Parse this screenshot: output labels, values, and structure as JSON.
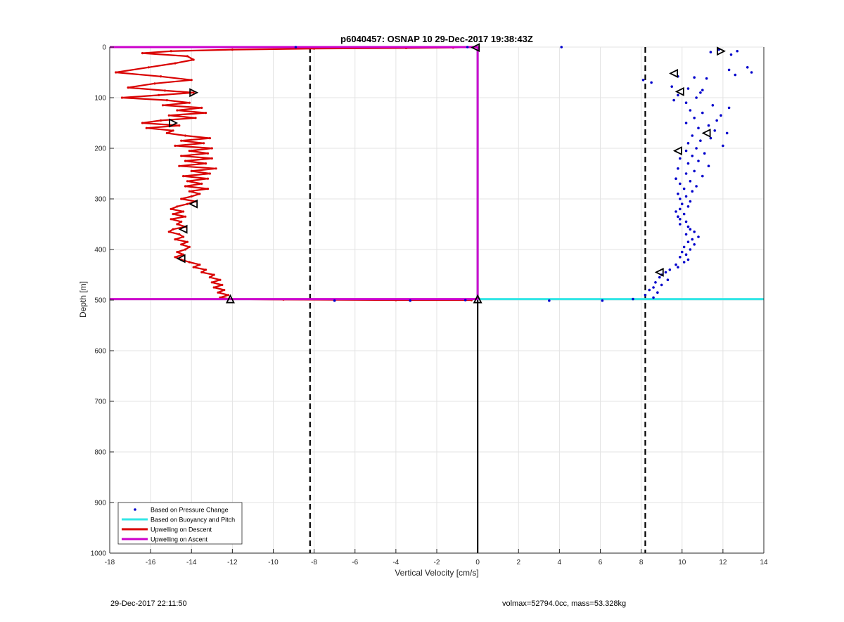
{
  "chart_data": {
    "type": "scatter",
    "title": "p6040457: OSNAP 10 29-Dec-2017 19:38:43Z",
    "xlabel": "Vertical Velocity [cm/s]",
    "ylabel": "Depth [m]",
    "xlim": [
      -18,
      14
    ],
    "ylim": [
      0,
      1000
    ],
    "y_reversed": true,
    "xticks": [
      -18,
      -16,
      -14,
      -12,
      -10,
      -8,
      -6,
      -4,
      -2,
      0,
      2,
      4,
      6,
      8,
      10,
      12,
      14
    ],
    "yticks": [
      0,
      100,
      200,
      300,
      400,
      500,
      600,
      700,
      800,
      900,
      1000
    ],
    "grid": true,
    "legend_position": "bottom-left",
    "colors": {
      "pressure": "#0000cc",
      "buoyancy": "#33e6e6",
      "descent": "#d90000",
      "ascent": "#cc00cc",
      "reference": "#000000"
    },
    "series": [
      {
        "name": "Based on Pressure Change",
        "style": "dots",
        "points": [
          [
            4.1,
            0
          ],
          [
            11.8,
            5
          ],
          [
            12.7,
            8
          ],
          [
            11.4,
            10
          ],
          [
            12.4,
            15
          ],
          [
            13.2,
            40
          ],
          [
            12.3,
            45
          ],
          [
            13.4,
            50
          ],
          [
            12.6,
            55
          ],
          [
            9.8,
            58
          ],
          [
            10.6,
            60
          ],
          [
            11.2,
            62
          ],
          [
            8.1,
            65
          ],
          [
            8.5,
            70
          ],
          [
            9.5,
            78
          ],
          [
            10.3,
            82
          ],
          [
            11.0,
            85
          ],
          [
            10.9,
            90
          ],
          [
            9.8,
            95
          ],
          [
            10.7,
            100
          ],
          [
            9.6,
            105
          ],
          [
            10.2,
            110
          ],
          [
            11.5,
            115
          ],
          [
            12.3,
            120
          ],
          [
            10.4,
            125
          ],
          [
            11.0,
            130
          ],
          [
            11.9,
            135
          ],
          [
            10.6,
            140
          ],
          [
            11.7,
            145
          ],
          [
            10.2,
            150
          ],
          [
            11.3,
            155
          ],
          [
            10.8,
            160
          ],
          [
            11.6,
            165
          ],
          [
            12.2,
            170
          ],
          [
            10.5,
            175
          ],
          [
            11.4,
            180
          ],
          [
            10.9,
            185
          ],
          [
            10.3,
            190
          ],
          [
            12.0,
            195
          ],
          [
            10.7,
            200
          ],
          [
            10.2,
            205
          ],
          [
            11.1,
            210
          ],
          [
            10.5,
            215
          ],
          [
            9.9,
            220
          ],
          [
            10.8,
            225
          ],
          [
            10.3,
            230
          ],
          [
            11.3,
            235
          ],
          [
            9.8,
            240
          ],
          [
            10.6,
            245
          ],
          [
            10.2,
            250
          ],
          [
            11.0,
            255
          ],
          [
            9.7,
            260
          ],
          [
            10.4,
            265
          ],
          [
            9.9,
            270
          ],
          [
            10.7,
            275
          ],
          [
            10.1,
            280
          ],
          [
            10.5,
            285
          ],
          [
            9.8,
            290
          ],
          [
            10.2,
            295
          ],
          [
            9.9,
            300
          ],
          [
            10.4,
            305
          ],
          [
            10.0,
            310
          ],
          [
            10.3,
            315
          ],
          [
            9.9,
            320
          ],
          [
            9.7,
            325
          ],
          [
            10.1,
            330
          ],
          [
            9.8,
            335
          ],
          [
            9.9,
            340
          ],
          [
            10.2,
            345
          ],
          [
            9.9,
            350
          ],
          [
            10.3,
            355
          ],
          [
            10.4,
            360
          ],
          [
            10.6,
            365
          ],
          [
            10.2,
            370
          ],
          [
            10.8,
            375
          ],
          [
            10.5,
            380
          ],
          [
            10.3,
            385
          ],
          [
            10.6,
            390
          ],
          [
            10.1,
            395
          ],
          [
            10.4,
            400
          ],
          [
            10.0,
            405
          ],
          [
            10.2,
            410
          ],
          [
            9.9,
            415
          ],
          [
            10.3,
            420
          ],
          [
            10.1,
            425
          ],
          [
            9.7,
            430
          ],
          [
            9.8,
            435
          ],
          [
            9.4,
            440
          ],
          [
            9.2,
            445
          ],
          [
            9.0,
            450
          ],
          [
            8.9,
            455
          ],
          [
            9.3,
            460
          ],
          [
            8.7,
            465
          ],
          [
            9.0,
            470
          ],
          [
            8.6,
            475
          ],
          [
            8.4,
            480
          ],
          [
            8.8,
            485
          ],
          [
            8.2,
            490
          ],
          [
            8.6,
            495
          ],
          [
            -0.5,
            0
          ],
          [
            -8.9,
            0
          ],
          [
            -0.6,
            500
          ],
          [
            -3.3,
            501
          ],
          [
            -7.0,
            501
          ],
          [
            3.5,
            501
          ],
          [
            6.1,
            501
          ],
          [
            7.6,
            498
          ]
        ]
      },
      {
        "name": "Based on Buoyancy and Pitch",
        "style": "line",
        "points": [
          [
            0,
            0
          ],
          [
            0,
            100
          ],
          [
            0,
            200
          ],
          [
            0,
            300
          ],
          [
            0,
            400
          ],
          [
            0,
            498
          ],
          [
            2,
            498
          ],
          [
            6,
            498
          ],
          [
            10,
            498
          ],
          [
            14,
            498
          ]
        ]
      },
      {
        "name": "Upwelling on Descent",
        "style": "line",
        "points": [
          [
            -0.3,
            0
          ],
          [
            -1.2,
            1
          ],
          [
            -3.5,
            2
          ],
          [
            -8,
            3
          ],
          [
            -12,
            5
          ],
          [
            -15,
            8
          ],
          [
            -16.4,
            12
          ],
          [
            -14.2,
            18
          ],
          [
            -13.9,
            25
          ],
          [
            -14.8,
            32
          ],
          [
            -16.1,
            40
          ],
          [
            -17.7,
            50
          ],
          [
            -15.5,
            58
          ],
          [
            -14.0,
            65
          ],
          [
            -15.8,
            72
          ],
          [
            -17.1,
            80
          ],
          [
            -15.3,
            86
          ],
          [
            -13.9,
            90
          ],
          [
            -15.6,
            95
          ],
          [
            -17.4,
            100
          ],
          [
            -15.2,
            105
          ],
          [
            -14.1,
            110
          ],
          [
            -15.4,
            115
          ],
          [
            -13.5,
            120
          ],
          [
            -14.7,
            125
          ],
          [
            -13.3,
            130
          ],
          [
            -15.1,
            135
          ],
          [
            -13.8,
            140
          ],
          [
            -15.5,
            145
          ],
          [
            -16.4,
            150
          ],
          [
            -14.6,
            155
          ],
          [
            -16.2,
            160
          ],
          [
            -14.9,
            165
          ],
          [
            -15.2,
            170
          ],
          [
            -14.3,
            175
          ],
          [
            -13.1,
            180
          ],
          [
            -14.5,
            185
          ],
          [
            -13.4,
            190
          ],
          [
            -14.8,
            195
          ],
          [
            -13.0,
            200
          ],
          [
            -14.1,
            205
          ],
          [
            -13.2,
            210
          ],
          [
            -14.5,
            215
          ],
          [
            -13.0,
            220
          ],
          [
            -14.3,
            225
          ],
          [
            -13.3,
            230
          ],
          [
            -14.6,
            235
          ],
          [
            -12.8,
            240
          ],
          [
            -14.0,
            245
          ],
          [
            -13.1,
            250
          ],
          [
            -14.4,
            255
          ],
          [
            -13.2,
            260
          ],
          [
            -14.2,
            265
          ],
          [
            -13.5,
            270
          ],
          [
            -14.3,
            275
          ],
          [
            -13.2,
            280
          ],
          [
            -14.1,
            285
          ],
          [
            -13.6,
            290
          ],
          [
            -14.0,
            295
          ],
          [
            -14.5,
            300
          ],
          [
            -13.8,
            305
          ],
          [
            -14.2,
            310
          ],
          [
            -14.7,
            315
          ],
          [
            -15.0,
            320
          ],
          [
            -14.4,
            325
          ],
          [
            -14.9,
            330
          ],
          [
            -14.3,
            335
          ],
          [
            -15.0,
            340
          ],
          [
            -14.5,
            345
          ],
          [
            -14.7,
            350
          ],
          [
            -14.3,
            355
          ],
          [
            -14.9,
            360
          ],
          [
            -15.1,
            365
          ],
          [
            -14.6,
            370
          ],
          [
            -14.4,
            375
          ],
          [
            -14.8,
            380
          ],
          [
            -14.2,
            385
          ],
          [
            -14.5,
            390
          ],
          [
            -14.1,
            395
          ],
          [
            -14.3,
            400
          ],
          [
            -14.7,
            405
          ],
          [
            -14.4,
            410
          ],
          [
            -14.8,
            415
          ],
          [
            -14.5,
            420
          ],
          [
            -14.1,
            425
          ],
          [
            -13.6,
            430
          ],
          [
            -13.9,
            435
          ],
          [
            -13.3,
            440
          ],
          [
            -13.5,
            445
          ],
          [
            -12.9,
            450
          ],
          [
            -13.1,
            455
          ],
          [
            -12.6,
            460
          ],
          [
            -13.0,
            465
          ],
          [
            -12.5,
            470
          ],
          [
            -12.9,
            475
          ],
          [
            -12.4,
            480
          ],
          [
            -12.7,
            485
          ],
          [
            -12.2,
            490
          ],
          [
            -12.6,
            495
          ],
          [
            -12.1,
            498
          ],
          [
            -9.5,
            499
          ],
          [
            -4,
            500
          ],
          [
            -0.3,
            500
          ]
        ]
      },
      {
        "name": "Upwelling on Ascent",
        "style": "line",
        "points": [
          [
            -18,
            0
          ],
          [
            -9,
            0
          ],
          [
            -3,
            0
          ],
          [
            0,
            0
          ],
          [
            0,
            498
          ],
          [
            -6,
            498
          ],
          [
            -12,
            498
          ],
          [
            -18,
            498
          ]
        ]
      }
    ],
    "reference_lines": [
      {
        "orientation": "vertical",
        "x": -8.2,
        "style": "dashed"
      },
      {
        "orientation": "vertical",
        "x": 8.2,
        "style": "dashed"
      },
      {
        "orientation": "vertical",
        "x": 0,
        "style": "solid",
        "y_from": 500,
        "y_to": 1000
      }
    ],
    "triangle_markers": [
      {
        "x": -0.1,
        "y": 1,
        "direction": "left"
      },
      {
        "x": -13.9,
        "y": 90,
        "direction": "right"
      },
      {
        "x": -14.9,
        "y": 150,
        "direction": "right"
      },
      {
        "x": -13.9,
        "y": 310,
        "direction": "left"
      },
      {
        "x": -14.4,
        "y": 360,
        "direction": "left"
      },
      {
        "x": -14.5,
        "y": 418,
        "direction": "left"
      },
      {
        "x": -12.1,
        "y": 498,
        "direction": "up"
      },
      {
        "x": 0,
        "y": 498,
        "direction": "up"
      },
      {
        "x": 11.9,
        "y": 8,
        "direction": "right"
      },
      {
        "x": 9.6,
        "y": 52,
        "direction": "left"
      },
      {
        "x": 9.9,
        "y": 88,
        "direction": "left"
      },
      {
        "x": 11.2,
        "y": 170,
        "direction": "left"
      },
      {
        "x": 9.8,
        "y": 205,
        "direction": "left"
      },
      {
        "x": 8.9,
        "y": 445,
        "direction": "left"
      }
    ]
  },
  "footer": {
    "timestamp": "29-Dec-2017 22:11:50",
    "params": "volmax=52794.0cc, mass=53.328kg"
  }
}
